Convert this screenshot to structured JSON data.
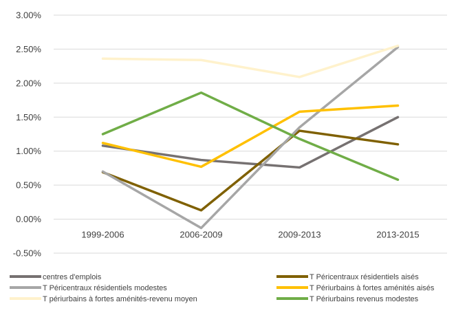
{
  "chart_data": {
    "type": "line",
    "title": "",
    "xlabel": "",
    "ylabel": "",
    "categories": [
      "1999-2006",
      "2006-2009",
      "2009-2013",
      "2013-2015"
    ],
    "y_ticks": [
      "-0.50%",
      "0.00%",
      "0.50%",
      "1.00%",
      "1.50%",
      "2.00%",
      "2.50%",
      "3.00%"
    ],
    "ylim": [
      -0.5,
      3.0
    ],
    "grid": true,
    "legend_position": "bottom",
    "series": [
      {
        "name": "centres d'emplois",
        "color": "#767171",
        "values": [
          1.08,
          0.87,
          0.76,
          1.5
        ]
      },
      {
        "name": "T Péricentraux résidentiels aisés",
        "color": "#7F6000",
        "values": [
          0.69,
          0.13,
          1.3,
          1.1
        ]
      },
      {
        "name": "T Péricentraux résidentiels modestes",
        "color": "#A6A6A6",
        "values": [
          0.7,
          -0.13,
          1.35,
          2.53
        ]
      },
      {
        "name": "T Périurbains à fortes aménités  aisés",
        "color": "#FFC000",
        "values": [
          1.12,
          0.77,
          1.58,
          1.67
        ]
      },
      {
        "name": "T périurbains à fortes aménités-revenu moyen",
        "color": "#FFF2CC",
        "values": [
          2.36,
          2.34,
          2.09,
          2.55
        ]
      },
      {
        "name": "T Périurbains revenus modestes",
        "color": "#70AD47",
        "values": [
          1.25,
          1.86,
          1.18,
          0.58
        ]
      }
    ]
  }
}
